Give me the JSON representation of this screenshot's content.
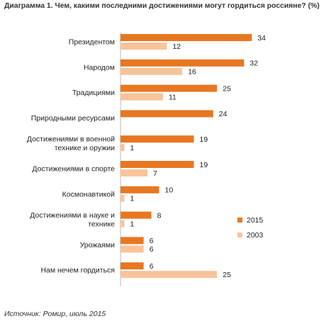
{
  "title": "Диаграмма 1. Чем, какими последними достижениями могут гордиться россияне? (%)",
  "source": "Источник: Ромир, июль 2015",
  "colors": {
    "s2015": "#E87722",
    "s2003": "#F9C49A",
    "axis": "#BBBBBB"
  },
  "chart_data": {
    "type": "bar",
    "orientation": "horizontal",
    "title": "Диаграмма 1. Чем, какими последними достижениями могут гордиться россияне? (%)",
    "categories": [
      [
        "Президентом"
      ],
      [
        "Народом"
      ],
      [
        "Традициями"
      ],
      [
        "Природными ресурсами"
      ],
      [
        "Достижениями в военной",
        "технике и оружии"
      ],
      [
        "Достижениями в спорте"
      ],
      [
        "Космонавтикой"
      ],
      [
        "Достижениями в науке и",
        "технике"
      ],
      [
        "Урожаями"
      ],
      [
        "Нам нечем гордиться"
      ]
    ],
    "series": [
      {
        "name": "2015",
        "values": [
          34,
          32,
          25,
          24,
          19,
          19,
          10,
          8,
          6,
          6
        ]
      },
      {
        "name": "2003",
        "values": [
          12,
          16,
          11,
          null,
          1,
          7,
          1,
          1,
          6,
          25
        ]
      }
    ],
    "xlim": [
      0,
      35
    ],
    "grid": false,
    "legend_position": "right"
  }
}
